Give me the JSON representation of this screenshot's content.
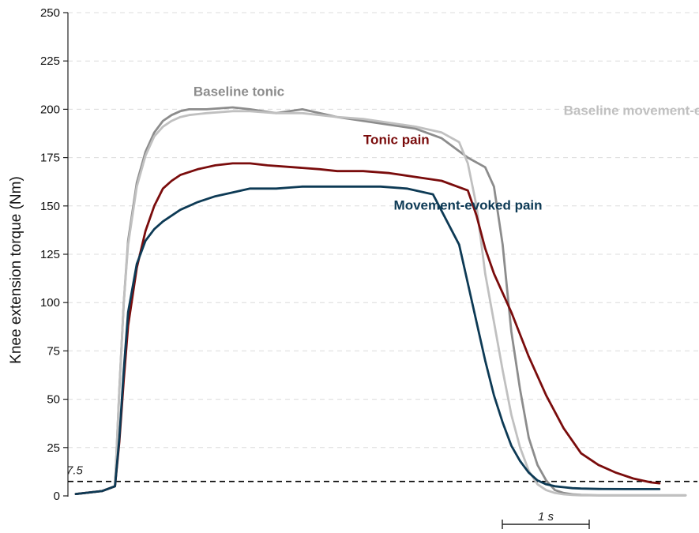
{
  "chart_data": {
    "type": "line",
    "title": "",
    "xlabel": "",
    "ylabel": "Knee extension torque (Nm)",
    "ylim": [
      0,
      250
    ],
    "xlim": [
      0,
      7.0
    ],
    "yticks": [
      0,
      25,
      50,
      75,
      100,
      125,
      150,
      175,
      200,
      225,
      250
    ],
    "grid": true,
    "legend": "inline-labels",
    "threshold": {
      "value": 7.5,
      "label": "7.5",
      "color": "#000000"
    },
    "scale_bar": {
      "length": 1,
      "label": "1 s"
    },
    "series": [
      {
        "name": "Baseline tonic",
        "color": "#8c8c8c",
        "label_x": 1.35,
        "label_y": 207,
        "x": [
          0,
          0.3,
          0.45,
          0.5,
          0.55,
          0.6,
          0.7,
          0.8,
          0.9,
          1.0,
          1.1,
          1.2,
          1.3,
          1.5,
          1.8,
          2.0,
          2.3,
          2.6,
          2.8,
          3.0,
          3.3,
          3.6,
          3.9,
          4.2,
          4.5,
          4.7,
          4.8,
          4.9,
          5.0,
          5.1,
          5.2,
          5.3,
          5.4,
          5.5,
          5.6,
          5.7,
          5.8,
          6.0,
          6.3,
          6.6,
          7.0
        ],
        "y": [
          1,
          2.5,
          5,
          55,
          100,
          132,
          162,
          178,
          188,
          194,
          197,
          199,
          200,
          200,
          201,
          200,
          198,
          200,
          198,
          196,
          194,
          192,
          190,
          185,
          175,
          170,
          160,
          130,
          85,
          55,
          30,
          16,
          8,
          3,
          1.5,
          0.8,
          0.5,
          0.3,
          0.3,
          0.3,
          0.3
        ]
      },
      {
        "name": "Baseline movement-evoked",
        "color": "#c0c0c0",
        "label_x": 5.6,
        "label_y": 197,
        "x": [
          0,
          0.3,
          0.45,
          0.5,
          0.55,
          0.6,
          0.7,
          0.8,
          0.9,
          1.0,
          1.1,
          1.2,
          1.3,
          1.5,
          1.8,
          2.0,
          2.3,
          2.6,
          2.8,
          3.0,
          3.3,
          3.6,
          3.9,
          4.2,
          4.4,
          4.5,
          4.6,
          4.7,
          4.8,
          4.9,
          5.0,
          5.1,
          5.2,
          5.3,
          5.4,
          5.5,
          5.6,
          5.7,
          5.8,
          6.0,
          6.3,
          6.6,
          7.0
        ],
        "y": [
          1,
          2.5,
          5,
          55,
          100,
          130,
          160,
          176,
          186,
          191,
          194,
          196,
          197,
          198,
          199,
          199,
          198,
          198,
          197,
          196,
          195,
          193,
          191,
          188,
          183,
          172,
          150,
          115,
          90,
          65,
          42,
          25,
          13,
          6,
          3,
          1.5,
          0.8,
          0.5,
          0.3,
          0.3,
          0.3,
          0.3,
          0.3
        ]
      },
      {
        "name": "Tonic pain",
        "color": "#7a0c0c",
        "label_x": 3.3,
        "label_y": 182,
        "x": [
          0,
          0.3,
          0.45,
          0.5,
          0.55,
          0.6,
          0.7,
          0.8,
          0.9,
          1.0,
          1.1,
          1.2,
          1.4,
          1.6,
          1.8,
          2.0,
          2.2,
          2.5,
          2.8,
          3.0,
          3.3,
          3.6,
          3.9,
          4.2,
          4.5,
          4.6,
          4.7,
          4.8,
          4.9,
          5.0,
          5.2,
          5.4,
          5.6,
          5.8,
          6.0,
          6.2,
          6.4,
          6.6,
          6.7
        ],
        "y": [
          1,
          2.5,
          5,
          28,
          60,
          88,
          118,
          137,
          150,
          159,
          163,
          166,
          169,
          171,
          172,
          172,
          171,
          170,
          169,
          168,
          168,
          167,
          165,
          163,
          158,
          145,
          128,
          115,
          105,
          95,
          72,
          52,
          35,
          22,
          16,
          12,
          9,
          7,
          6.5
        ]
      },
      {
        "name": "Movement-evoked pain",
        "color": "#0d3a55",
        "label_x": 3.65,
        "label_y": 148,
        "x": [
          0,
          0.3,
          0.45,
          0.5,
          0.55,
          0.6,
          0.7,
          0.8,
          0.9,
          1.0,
          1.2,
          1.4,
          1.6,
          1.8,
          2.0,
          2.3,
          2.6,
          2.9,
          3.2,
          3.5,
          3.8,
          4.1,
          4.4,
          4.5,
          4.6,
          4.7,
          4.8,
          4.9,
          5.0,
          5.1,
          5.2,
          5.3,
          5.4,
          5.5,
          5.6,
          5.7,
          5.8,
          6.0,
          6.3,
          6.6,
          6.7
        ],
        "y": [
          1,
          2.5,
          5,
          30,
          65,
          95,
          120,
          132,
          138,
          142,
          148,
          152,
          155,
          157,
          159,
          159,
          160,
          160,
          160,
          160,
          159,
          156,
          130,
          110,
          90,
          70,
          52,
          38,
          26,
          18,
          12,
          8,
          6,
          5,
          4.5,
          4,
          3.8,
          3.6,
          3.5,
          3.5,
          3.5
        ]
      }
    ]
  }
}
